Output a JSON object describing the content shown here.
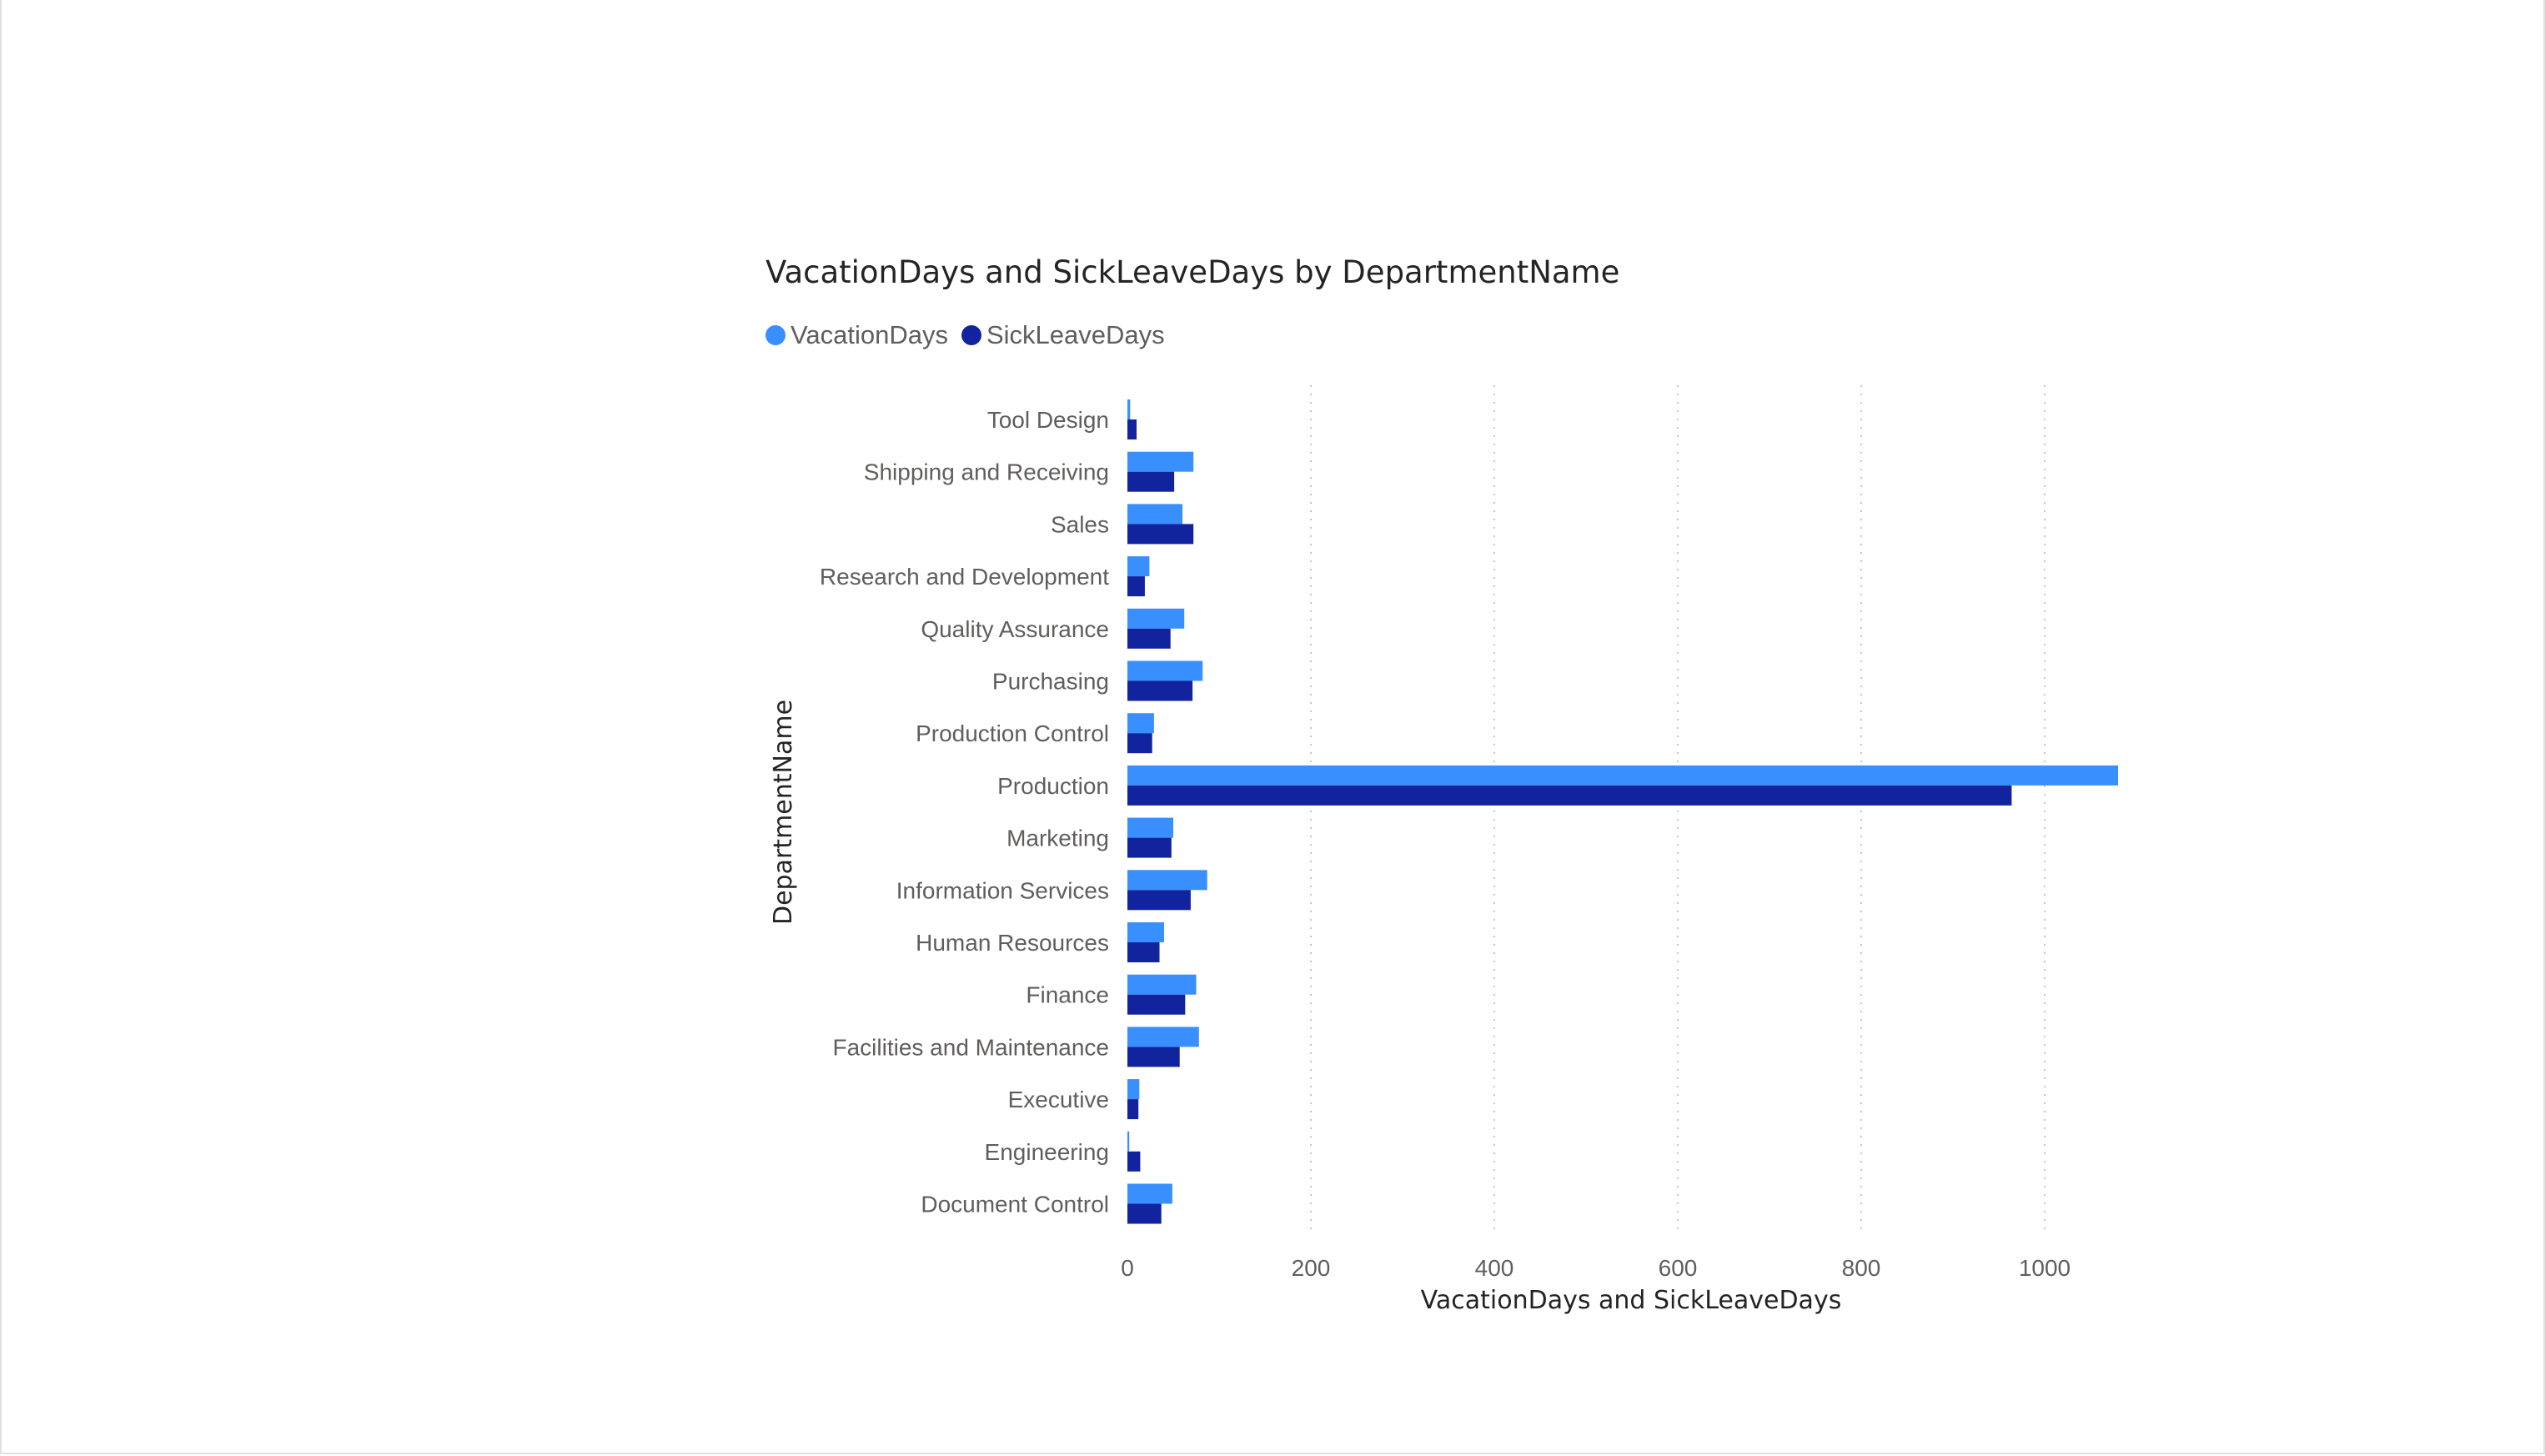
{
  "chart_data": {
    "type": "bar",
    "orientation": "horizontal",
    "title": "VacationDays and SickLeaveDays by DepartmentName",
    "xlabel": "VacationDays and SickLeaveDays",
    "ylabel": "DepartmentName",
    "categories": [
      "Tool Design",
      "Shipping and Receiving",
      "Sales",
      "Research and Development",
      "Quality Assurance",
      "Purchasing",
      "Production Control",
      "Production",
      "Marketing",
      "Information Services",
      "Human Resources",
      "Finance",
      "Facilities and Maintenance",
      "Executive",
      "Engineering",
      "Document Control"
    ],
    "series": [
      {
        "name": "VacationDays",
        "color": "#3a8fff",
        "values": [
          3,
          72,
          60,
          24,
          62,
          82,
          29,
          1080,
          50,
          87,
          40,
          75,
          78,
          13,
          2,
          49
        ]
      },
      {
        "name": "SickLeaveDays",
        "color": "#12239e",
        "values": [
          10,
          51,
          72,
          19,
          47,
          71,
          27,
          964,
          48,
          69,
          35,
          63,
          57,
          12,
          14,
          37
        ]
      }
    ],
    "xlim": [
      0,
      1100
    ],
    "xticks": [
      0,
      200,
      400,
      600,
      800,
      1000
    ],
    "grid": "vertical-dotted",
    "legend_position": "top-left"
  }
}
